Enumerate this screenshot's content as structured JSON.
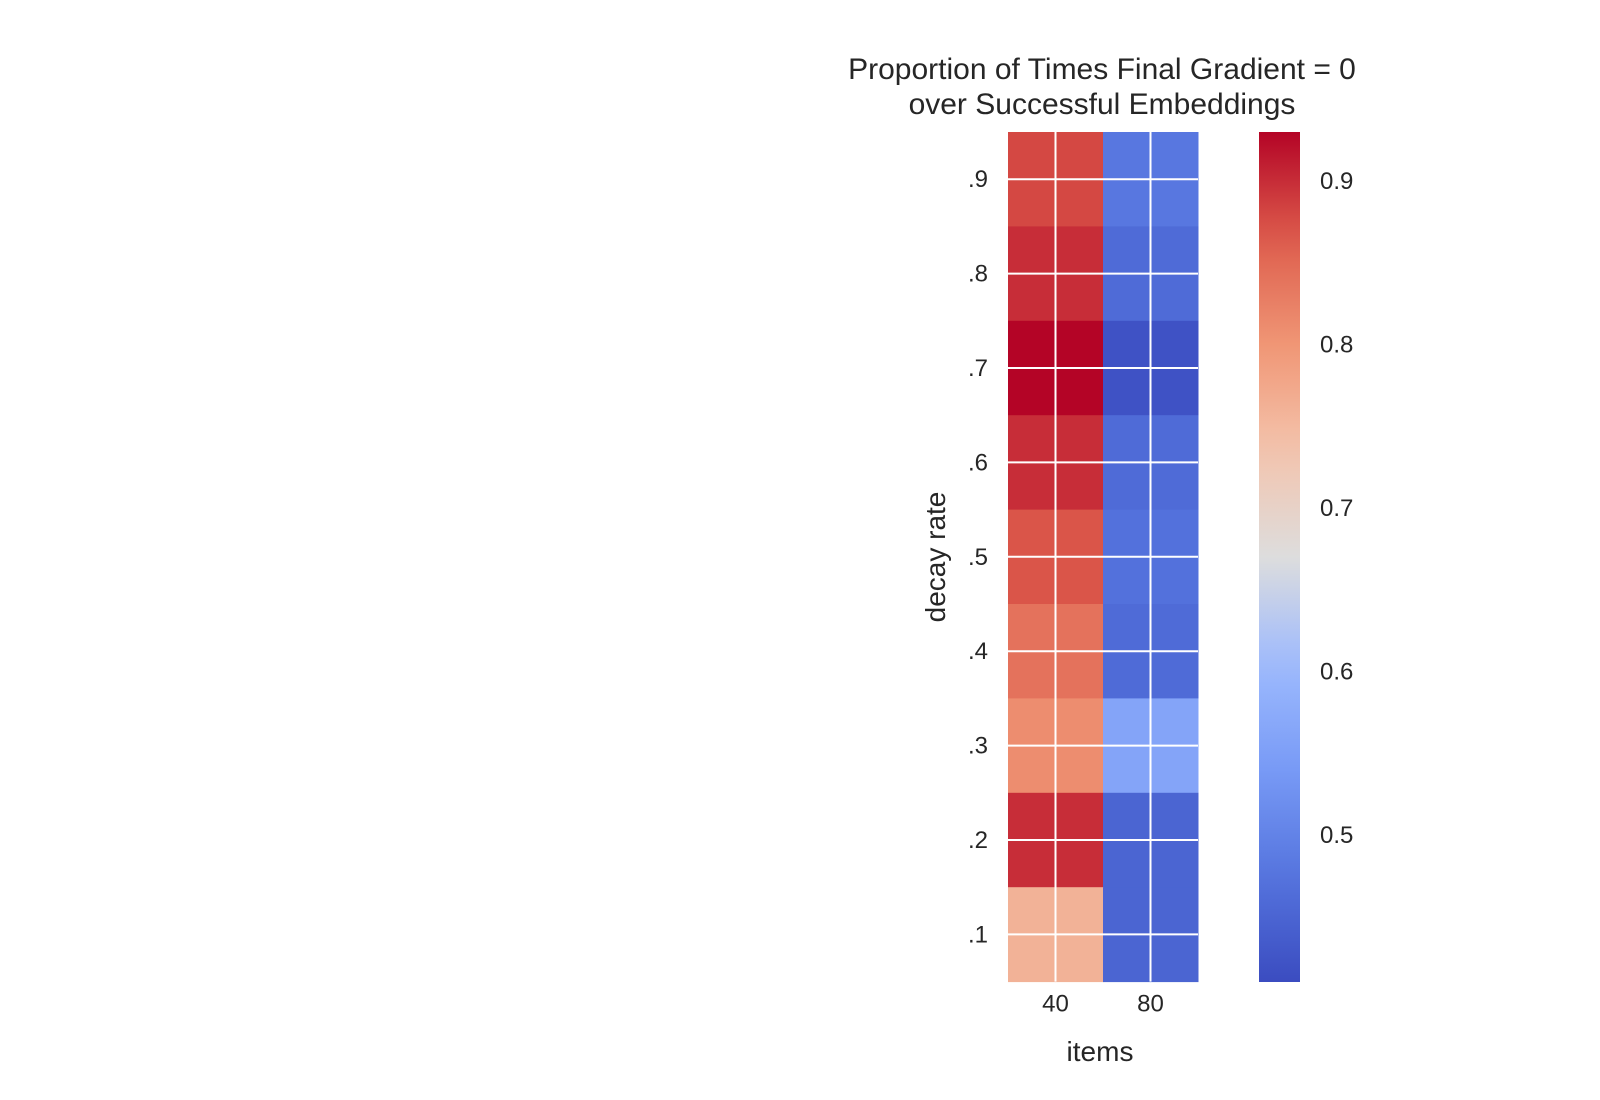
{
  "chart_data": {
    "type": "heatmap",
    "title_lines": [
      "Proportion of Times Final Gradient = 0",
      "over Successful Embeddings"
    ],
    "xlabel": "items",
    "ylabel": "decay rate",
    "x_ticks": [
      "40",
      "80"
    ],
    "y_ticks": [
      ".9",
      ".8",
      ".7",
      ".6",
      ".5",
      ".4",
      ".3",
      ".2",
      ".1"
    ],
    "colormap": "coolwarm",
    "colorbar": {
      "vmin": 0.41,
      "vmax": 0.93,
      "ticks": [
        0.5,
        0.6,
        0.7,
        0.8,
        0.9
      ],
      "tick_labels": [
        "0.5",
        "0.6",
        "0.7",
        "0.8",
        "0.9"
      ]
    },
    "columns": 4,
    "values": [
      [
        0.88,
        0.88,
        0.48,
        0.48
      ],
      [
        0.88,
        0.88,
        0.48,
        0.48
      ],
      [
        0.9,
        0.9,
        0.46,
        0.46
      ],
      [
        0.9,
        0.9,
        0.46,
        0.46
      ],
      [
        0.93,
        0.93,
        0.42,
        0.42
      ],
      [
        0.93,
        0.93,
        0.42,
        0.42
      ],
      [
        0.9,
        0.9,
        0.46,
        0.46
      ],
      [
        0.9,
        0.9,
        0.46,
        0.46
      ],
      [
        0.87,
        0.87,
        0.47,
        0.47
      ],
      [
        0.87,
        0.87,
        0.47,
        0.47
      ],
      [
        0.84,
        0.84,
        0.46,
        0.46
      ],
      [
        0.84,
        0.84,
        0.46,
        0.46
      ],
      [
        0.81,
        0.81,
        0.56,
        0.56
      ],
      [
        0.81,
        0.81,
        0.56,
        0.56
      ],
      [
        0.9,
        0.9,
        0.45,
        0.45
      ],
      [
        0.9,
        0.9,
        0.45,
        0.45
      ],
      [
        0.76,
        0.76,
        0.45,
        0.45
      ],
      [
        0.76,
        0.76,
        0.45,
        0.45
      ]
    ]
  }
}
